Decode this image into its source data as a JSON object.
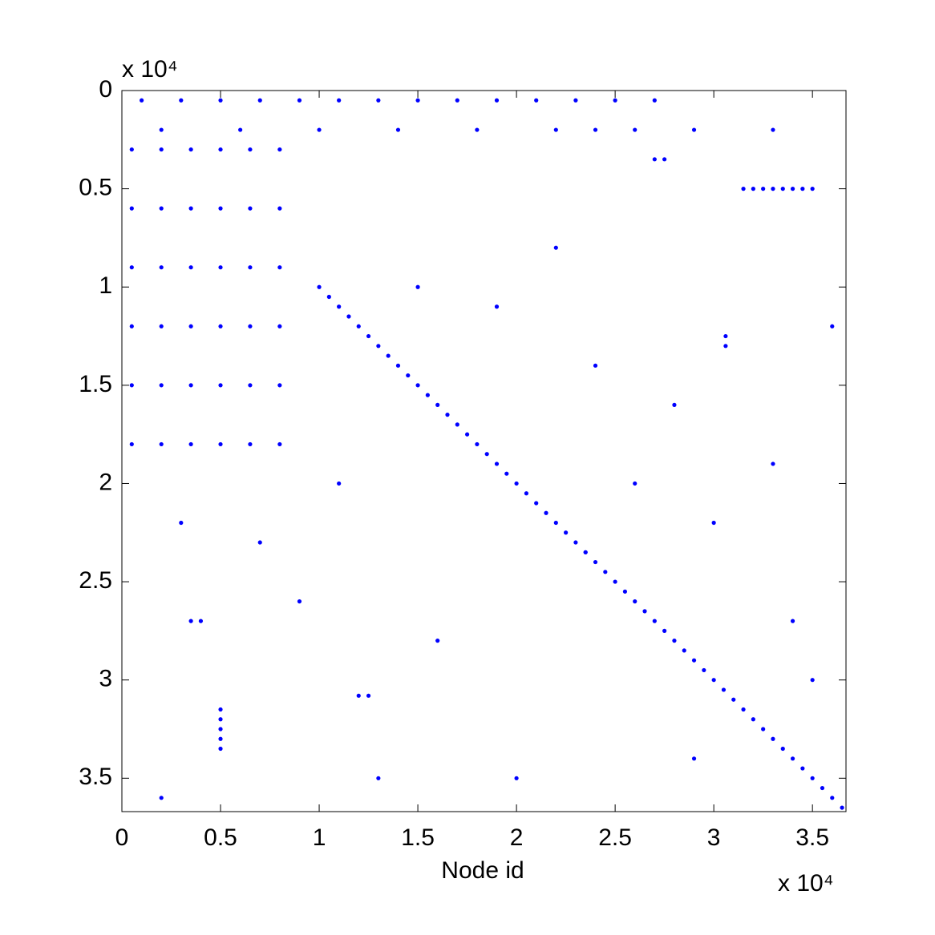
{
  "chart_data": {
    "type": "scatter",
    "x_label": "Node id",
    "x_multiplier": "x 10⁴",
    "y_multiplier": "x 10⁴",
    "color": "#0000ff",
    "xlim": [
      0,
      3.67
    ],
    "ylim": [
      0,
      3.67
    ],
    "y_reversed": true,
    "grid": false,
    "xticks": [
      0,
      0.5,
      1,
      1.5,
      2,
      2.5,
      3,
      3.5
    ],
    "yticks": [
      0,
      0.5,
      1,
      1.5,
      2,
      2.5,
      3,
      3.5
    ],
    "x": [
      1.0,
      1.05,
      1.1,
      1.15,
      1.2,
      1.25,
      1.3,
      1.35,
      1.4,
      1.45,
      1.5,
      1.55,
      1.6,
      1.65,
      1.7,
      1.75,
      1.8,
      1.85,
      1.9,
      1.95,
      2.0,
      2.05,
      2.1,
      2.15,
      2.2,
      2.25,
      2.3,
      2.35,
      2.4,
      2.45,
      2.5,
      2.55,
      2.6,
      2.65,
      2.7,
      2.75,
      2.8,
      2.85,
      2.9,
      2.95,
      3.0,
      3.05,
      3.1,
      3.15,
      3.2,
      3.25,
      3.3,
      3.35,
      3.4,
      3.45,
      3.5,
      3.55,
      3.6,
      3.65,
      0.1,
      0.3,
      0.5,
      0.7,
      0.9,
      1.1,
      1.3,
      1.5,
      1.7,
      1.9,
      2.1,
      2.3,
      2.5,
      2.7,
      0.2,
      0.6,
      1.0,
      1.4,
      1.8,
      2.2,
      2.4,
      2.6,
      2.9,
      3.3,
      3.15,
      3.2,
      3.25,
      3.3,
      3.35,
      3.4,
      3.45,
      3.5,
      0.5,
      0.5,
      0.5,
      0.5,
      0.5,
      0.05,
      0.05,
      0.05,
      0.05,
      0.05,
      0.05,
      0.2,
      0.2,
      0.2,
      0.2,
      0.2,
      0.2,
      0.35,
      0.35,
      0.35,
      0.35,
      0.35,
      0.35,
      0.5,
      0.5,
      0.5,
      0.5,
      0.5,
      0.5,
      0.65,
      0.65,
      0.65,
      0.65,
      0.65,
      0.65,
      0.8,
      0.8,
      0.8,
      0.8,
      0.8,
      0.8,
      1.2,
      1.25,
      0.35,
      0.4,
      2.7,
      2.75,
      3.06,
      3.06,
      2.35,
      3.0,
      3.5,
      2.0,
      1.6,
      0.9,
      2.8,
      3.3,
      1.9,
      2.2,
      0.3,
      0.7,
      1.1,
      1.5,
      2.6,
      3.4,
      0.2,
      2.9,
      3.6,
      1.3,
      2.4
    ],
    "values": [
      1.0,
      1.05,
      1.1,
      1.15,
      1.2,
      1.25,
      1.3,
      1.35,
      1.4,
      1.45,
      1.5,
      1.55,
      1.6,
      1.65,
      1.7,
      1.75,
      1.8,
      1.85,
      1.9,
      1.95,
      2.0,
      2.05,
      2.1,
      2.15,
      2.2,
      2.25,
      2.3,
      2.35,
      2.4,
      2.45,
      2.5,
      2.55,
      2.6,
      2.65,
      2.7,
      2.75,
      2.8,
      2.85,
      2.9,
      2.95,
      3.0,
      3.05,
      3.1,
      3.15,
      3.2,
      3.25,
      3.3,
      3.35,
      3.4,
      3.45,
      3.5,
      3.55,
      3.6,
      3.65,
      0.05,
      0.05,
      0.05,
      0.05,
      0.05,
      0.05,
      0.05,
      0.05,
      0.05,
      0.05,
      0.05,
      0.05,
      0.05,
      0.05,
      0.2,
      0.2,
      0.2,
      0.2,
      0.2,
      0.2,
      0.2,
      0.2,
      0.2,
      0.2,
      0.5,
      0.5,
      0.5,
      0.5,
      0.5,
      0.5,
      0.5,
      0.5,
      3.15,
      3.2,
      3.25,
      3.3,
      3.35,
      0.3,
      0.6,
      0.9,
      1.2,
      1.5,
      1.8,
      0.3,
      0.6,
      0.9,
      1.2,
      1.5,
      1.8,
      0.3,
      0.6,
      0.9,
      1.2,
      1.5,
      1.8,
      0.3,
      0.6,
      0.9,
      1.2,
      1.5,
      1.8,
      0.3,
      0.6,
      0.9,
      1.2,
      1.5,
      1.8,
      0.3,
      0.6,
      0.9,
      1.2,
      1.5,
      1.8,
      3.08,
      3.08,
      2.7,
      2.7,
      0.35,
      0.35,
      1.25,
      1.3,
      2.35,
      2.2,
      3.0,
      3.5,
      2.8,
      2.6,
      1.6,
      1.9,
      1.1,
      0.8,
      2.2,
      2.3,
      2.0,
      1.0,
      2.0,
      2.7,
      3.6,
      3.4,
      1.2,
      3.5,
      1.4
    ]
  }
}
